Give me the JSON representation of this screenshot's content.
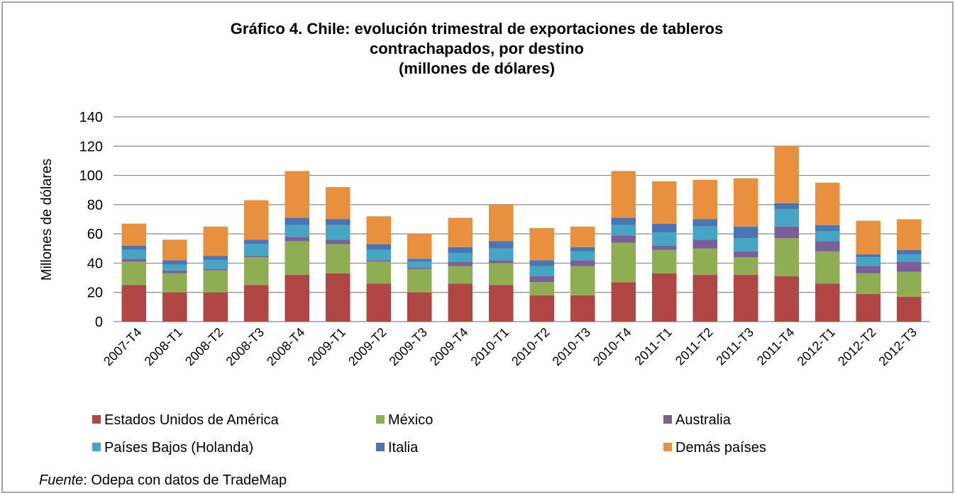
{
  "chart_data": {
    "type": "stacked_bar",
    "title": [
      "Gráfico 4. Chile: evolución  trimestral de exportaciones de tableros",
      "contrachapados, por destino",
      "(millones de dólares)"
    ],
    "y_label": "Millones de dólares",
    "categories": [
      "2007-T4",
      "2008-T1",
      "2008-T2",
      "2008-T3",
      "2008-T4",
      "2009-T1",
      "2009-T2",
      "2009-T3",
      "2009-T4",
      "2010-T1",
      "2010-T2",
      "2010-T3",
      "2010-T4",
      "2011-T1",
      "2011-T2",
      "2011-T3",
      "2011-T4",
      "2012-T1",
      "2012-T2",
      "2012-T3"
    ],
    "series": [
      {
        "name": "Estados Unidos de América",
        "color": "#b04744",
        "values": [
          25,
          20,
          20,
          25,
          32,
          33,
          26,
          20,
          26,
          25,
          18,
          18,
          27,
          33,
          32,
          32,
          31,
          26,
          19,
          17
        ]
      },
      {
        "name": "México",
        "color": "#8fae53",
        "values": [
          16,
          13,
          15,
          19,
          23,
          20,
          15,
          16,
          12,
          15,
          9,
          20,
          27,
          16,
          18,
          12,
          26,
          22,
          14,
          17
        ]
      },
      {
        "name": "Australia",
        "color": "#7a5f99",
        "values": [
          2,
          2,
          1,
          1,
          3,
          3,
          1,
          1,
          3,
          2,
          4,
          4,
          5,
          3,
          6,
          4,
          8,
          7,
          5,
          7
        ]
      },
      {
        "name": "Países Bajos (Holanda)",
        "color": "#45a5c2",
        "values": [
          6,
          4,
          6,
          8,
          8,
          10,
          7,
          4,
          6,
          8,
          7,
          6,
          7,
          9,
          9,
          9,
          12,
          7,
          6,
          5
        ]
      },
      {
        "name": "Italia",
        "color": "#4a76b5",
        "values": [
          3,
          3,
          3,
          3,
          5,
          4,
          4,
          2,
          4,
          5,
          4,
          3,
          5,
          6,
          5,
          8,
          4,
          4,
          2,
          3
        ]
      },
      {
        "name": "Demás países",
        "color": "#e8903d",
        "values": [
          15,
          14,
          20,
          27,
          32,
          22,
          19,
          17,
          20,
          25,
          22,
          14,
          32,
          29,
          27,
          33,
          39,
          29,
          23,
          21
        ]
      }
    ],
    "ylim": [
      0,
      140
    ],
    "yticks": [
      0,
      20,
      40,
      60,
      80,
      100,
      120,
      140
    ],
    "grid": true,
    "legend_position": "bottom",
    "source_label": "Fuente",
    "source_text": ": Odepa con datos de TradeMap"
  }
}
